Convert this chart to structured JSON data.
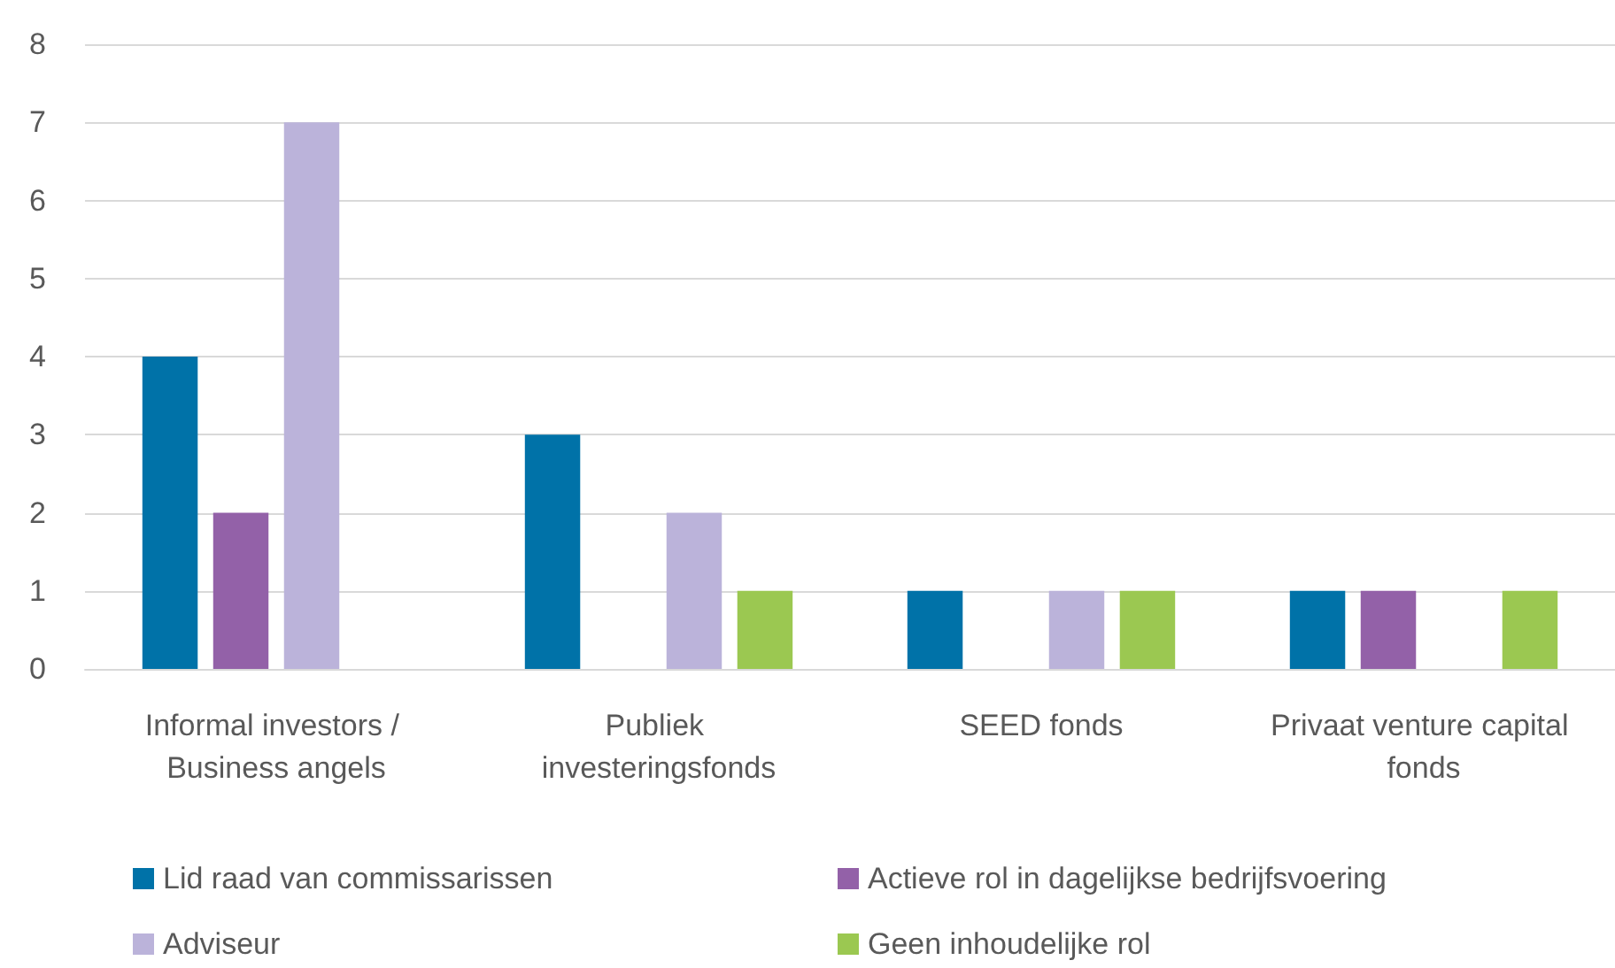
{
  "chart_data": {
    "type": "bar",
    "categories": [
      "Informal investors / Business angels",
      "Publiek investeringsfonds",
      "SEED fonds",
      "Privaat venture capital fonds"
    ],
    "series": [
      {
        "name": "Lid raad van commissarissen",
        "color": "#0072a8",
        "values": [
          4,
          3,
          1,
          1
        ]
      },
      {
        "name": "Actieve rol in dagelijkse bedrijfsvoering",
        "color": "#9361a8",
        "values": [
          2,
          0,
          0,
          1
        ]
      },
      {
        "name": "Adviseur",
        "color": "#bbb3da",
        "values": [
          7,
          2,
          1,
          0
        ]
      },
      {
        "name": "Geen inhoudelijke rol",
        "color": "#9bc851",
        "values": [
          0,
          1,
          1,
          1
        ]
      }
    ],
    "ylim": [
      0,
      8
    ],
    "yticks": [
      0,
      1,
      2,
      3,
      4,
      5,
      6,
      7,
      8
    ],
    "grid": "y",
    "legend": "bottom"
  }
}
